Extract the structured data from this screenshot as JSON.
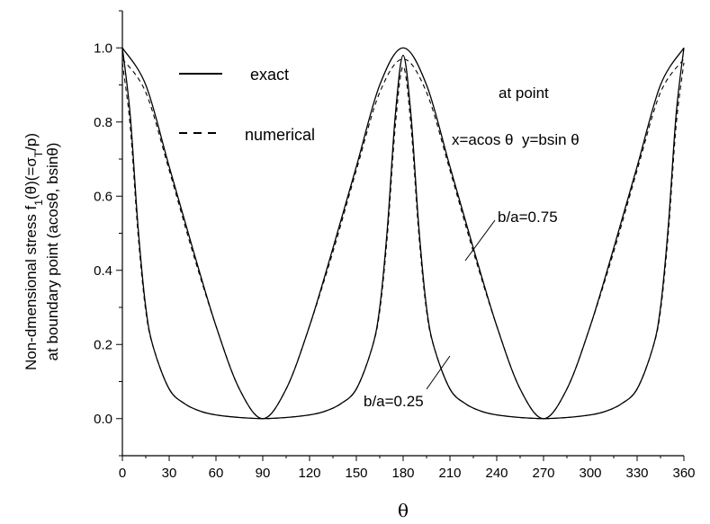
{
  "chart_data": {
    "type": "line",
    "xlabel": "θ",
    "ylabel_line1": "Non-dmensional stress f",
    "ylabel_sub1": "1",
    "ylabel_mid": "(θ)(=σ",
    "ylabel_sub2": "T",
    "ylabel_end": "/p)",
    "ylabel_line2": "at boundary point (acosθ, bsinθ)",
    "xlim": [
      0,
      360
    ],
    "ylim": [
      -0.1,
      1.1
    ],
    "x_ticks": [
      0,
      30,
      60,
      90,
      120,
      150,
      180,
      210,
      240,
      270,
      300,
      330,
      360
    ],
    "y_ticks": [
      "0.0",
      "0.2",
      "0.4",
      "0.6",
      "0.8",
      "1.0"
    ],
    "legend": [
      {
        "label": "exact",
        "style": "solid"
      },
      {
        "label": "numerical",
        "style": "dashed"
      }
    ],
    "annotations": {
      "point_title": "at point",
      "point_formula": "x=acos θ  y=bsin θ",
      "label_075": "b/a=0.75",
      "label_025": "b/a=0.25"
    },
    "series": [
      {
        "name": "b/a=0.75",
        "x": [
          0,
          15,
          30,
          45,
          60,
          75,
          90,
          105,
          120,
          135,
          150,
          165,
          180,
          195,
          210,
          225,
          240,
          255,
          270,
          285,
          300,
          315,
          330,
          345,
          360
        ],
        "exact": [
          1.0,
          0.9,
          0.68,
          0.46,
          0.25,
          0.08,
          0.0,
          0.08,
          0.25,
          0.46,
          0.68,
          0.9,
          1.0,
          0.9,
          0.68,
          0.46,
          0.25,
          0.08,
          0.0,
          0.08,
          0.25,
          0.46,
          0.68,
          0.9,
          1.0
        ],
        "numerical": [
          0.97,
          0.88,
          0.67,
          0.45,
          0.25,
          0.08,
          0.0,
          0.08,
          0.25,
          0.45,
          0.67,
          0.88,
          0.97,
          0.88,
          0.67,
          0.45,
          0.25,
          0.08,
          0.0,
          0.08,
          0.25,
          0.45,
          0.67,
          0.88,
          0.97
        ]
      },
      {
        "name": "b/a=0.25",
        "x": [
          0,
          5,
          10,
          15,
          20,
          30,
          40,
          50,
          60,
          75,
          90,
          105,
          120,
          130,
          140,
          150,
          160,
          165,
          170,
          175,
          180,
          185,
          190,
          195,
          200,
          210,
          220,
          230,
          240,
          255,
          270,
          285,
          300,
          310,
          320,
          330,
          340,
          345,
          350,
          355,
          360
        ],
        "exact": [
          1.0,
          0.82,
          0.52,
          0.3,
          0.19,
          0.08,
          0.04,
          0.02,
          0.01,
          0.003,
          0.0,
          0.003,
          0.01,
          0.02,
          0.04,
          0.08,
          0.19,
          0.3,
          0.52,
          0.82,
          0.98,
          0.82,
          0.52,
          0.3,
          0.19,
          0.08,
          0.04,
          0.02,
          0.01,
          0.003,
          0.0,
          0.003,
          0.01,
          0.02,
          0.04,
          0.08,
          0.19,
          0.3,
          0.52,
          0.82,
          1.0
        ],
        "numerical": [
          0.96,
          0.79,
          0.5,
          0.29,
          0.19,
          0.08,
          0.04,
          0.02,
          0.01,
          0.003,
          0.0,
          0.003,
          0.01,
          0.02,
          0.04,
          0.08,
          0.19,
          0.29,
          0.5,
          0.79,
          0.95,
          0.79,
          0.5,
          0.29,
          0.19,
          0.08,
          0.04,
          0.02,
          0.01,
          0.003,
          0.0,
          0.003,
          0.01,
          0.02,
          0.04,
          0.08,
          0.19,
          0.29,
          0.5,
          0.79,
          0.96
        ]
      }
    ]
  }
}
